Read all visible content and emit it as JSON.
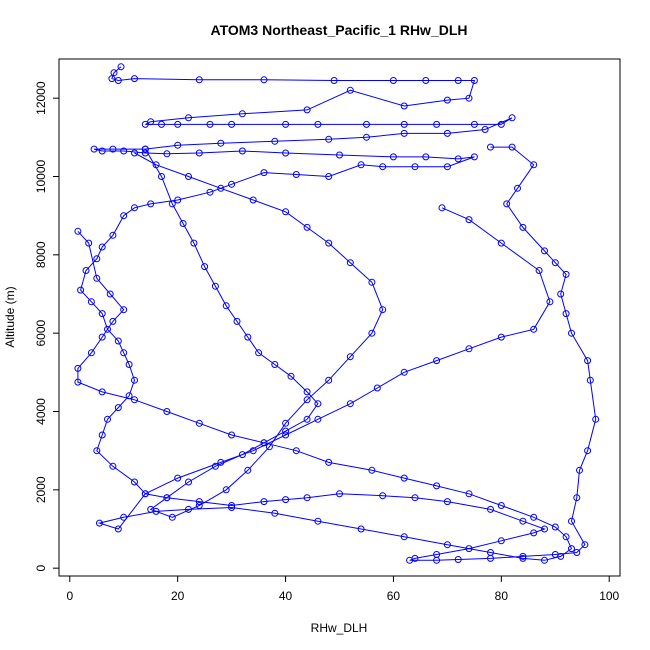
{
  "chart_data": {
    "type": "scatter",
    "title": "ATOM3 Northeast_Pacific_1 RHw_DLH",
    "xlabel": "RHw_DLH",
    "ylabel": "Altitude (m)",
    "xlim": [
      -2,
      102
    ],
    "ylim": [
      -200,
      13000
    ],
    "xticks": [
      0,
      20,
      40,
      60,
      80,
      100
    ],
    "yticks": [
      0,
      2000,
      4000,
      6000,
      8000,
      10000,
      12000
    ],
    "grid": false,
    "legend": "none",
    "series_color": "#0000ff",
    "marker": "open-circle",
    "series": [
      {
        "values": [
          [
            9.5,
            12800
          ],
          [
            8.2,
            12650
          ],
          [
            7.8,
            12500
          ],
          [
            9.0,
            12450
          ],
          [
            12.0,
            12500
          ],
          [
            24.0,
            12470
          ],
          [
            36.0,
            12470
          ],
          [
            49.0,
            12450
          ],
          [
            60.0,
            12450
          ],
          [
            66.0,
            12450
          ],
          [
            72.0,
            12450
          ],
          [
            75.0,
            12450
          ],
          [
            74.0,
            12000
          ],
          [
            70.0,
            11950
          ],
          [
            62.0,
            11800
          ],
          [
            52.0,
            12200
          ],
          [
            44.0,
            11700
          ],
          [
            32.0,
            11600
          ],
          [
            22.0,
            11500
          ],
          [
            15.0,
            11400
          ],
          [
            14.0,
            11330
          ],
          [
            17.0,
            11330
          ],
          [
            20.0,
            11330
          ],
          [
            26.0,
            11330
          ],
          [
            30.0,
            11330
          ],
          [
            40.0,
            11330
          ],
          [
            46.0,
            11330
          ],
          [
            55.0,
            11330
          ],
          [
            62.0,
            11330
          ],
          [
            68.0,
            11330
          ],
          [
            75.0,
            11330
          ],
          [
            80.0,
            11330
          ],
          [
            82.0,
            11500
          ],
          [
            77.0,
            11200
          ],
          [
            70.0,
            11100
          ],
          [
            62.0,
            11100
          ],
          [
            55.0,
            11000
          ],
          [
            48.0,
            10950
          ],
          [
            38.0,
            10900
          ],
          [
            28.0,
            10850
          ],
          [
            20.0,
            10800
          ],
          [
            14.0,
            10700
          ],
          [
            8.0,
            10700
          ],
          [
            4.5,
            10700
          ],
          [
            6.0,
            10650
          ],
          [
            10.0,
            10650
          ],
          [
            14.0,
            10600
          ],
          [
            18.0,
            10580
          ],
          [
            24.0,
            10600
          ],
          [
            32.0,
            10650
          ],
          [
            40.0,
            10600
          ],
          [
            50.0,
            10550
          ],
          [
            60.0,
            10500
          ],
          [
            66.0,
            10500
          ],
          [
            72.0,
            10450
          ],
          [
            75.0,
            10500
          ],
          [
            70.0,
            10250
          ],
          [
            64.0,
            10250
          ],
          [
            58.0,
            10250
          ],
          [
            54.0,
            10300
          ],
          [
            48.0,
            10000
          ],
          [
            42.0,
            10050
          ],
          [
            36.0,
            10100
          ],
          [
            30.0,
            9800
          ],
          [
            26.0,
            9600
          ],
          [
            20.0,
            9400
          ],
          [
            15.0,
            9300
          ],
          [
            12.0,
            9200
          ],
          [
            10.0,
            9000
          ],
          [
            8.0,
            8500
          ],
          [
            6.0,
            8200
          ],
          [
            5.0,
            7900
          ],
          [
            3.0,
            7600
          ],
          [
            2.0,
            7100
          ],
          [
            4.0,
            6800
          ],
          [
            6.0,
            6500
          ],
          [
            7.0,
            6100
          ],
          [
            9.0,
            5800
          ],
          [
            10.0,
            5500
          ],
          [
            11.0,
            5200
          ],
          [
            12.0,
            4800
          ],
          [
            11.0,
            4400
          ],
          [
            9.0,
            4100
          ],
          [
            7.0,
            3800
          ],
          [
            6.0,
            3400
          ],
          [
            5.0,
            3000
          ],
          [
            8.0,
            2600
          ],
          [
            12.0,
            2200
          ],
          [
            14.0,
            1900
          ],
          [
            18.0,
            1800
          ],
          [
            24.0,
            1700
          ],
          [
            30.0,
            1600
          ],
          [
            36.0,
            1700
          ],
          [
            40.0,
            1750
          ],
          [
            44.0,
            1800
          ],
          [
            50.0,
            1900
          ],
          [
            58.0,
            1850
          ],
          [
            64.0,
            1800
          ],
          [
            70.0,
            1700
          ],
          [
            78.0,
            1500
          ],
          [
            84.0,
            1200
          ],
          [
            88.0,
            1000
          ],
          [
            86.0,
            900
          ],
          [
            80.0,
            700
          ],
          [
            74.0,
            500
          ],
          [
            68.0,
            350
          ],
          [
            64.0,
            250
          ],
          [
            63.0,
            200
          ],
          [
            68.0,
            200
          ],
          [
            72.0,
            220
          ],
          [
            78.0,
            250
          ],
          [
            84.0,
            300
          ],
          [
            90.0,
            350
          ],
          [
            94.0,
            400
          ],
          [
            95.5,
            600
          ],
          [
            93.0,
            1200
          ],
          [
            94.0,
            1800
          ],
          [
            94.5,
            2500
          ],
          [
            96.0,
            3000
          ],
          [
            97.5,
            3800
          ],
          [
            96.5,
            4800
          ],
          [
            96.0,
            5300
          ],
          [
            93.0,
            6000
          ],
          [
            92.0,
            6500
          ],
          [
            91.0,
            7000
          ],
          [
            92.0,
            7500
          ],
          [
            90.0,
            7800
          ],
          [
            88.0,
            8100
          ],
          [
            84.0,
            8700
          ],
          [
            81.0,
            9300
          ],
          [
            83.0,
            9700
          ],
          [
            86.0,
            10300
          ],
          [
            82.0,
            10750
          ],
          [
            78.0,
            10750
          ]
        ]
      },
      {
        "values": [
          [
            1.5,
            8600
          ],
          [
            3.5,
            8300
          ],
          [
            5.0,
            7400
          ],
          [
            7.5,
            7000
          ],
          [
            10.0,
            6600
          ],
          [
            8.0,
            6300
          ],
          [
            6.0,
            5900
          ],
          [
            4.0,
            5500
          ],
          [
            1.5,
            5100
          ],
          [
            1.5,
            4750
          ],
          [
            6.0,
            4500
          ],
          [
            12.0,
            4300
          ],
          [
            18.0,
            4000
          ],
          [
            24.0,
            3700
          ],
          [
            30.0,
            3400
          ],
          [
            36.0,
            3200
          ],
          [
            42.0,
            3000
          ],
          [
            48.0,
            2700
          ],
          [
            56.0,
            2500
          ],
          [
            62.0,
            2300
          ],
          [
            68.0,
            2100
          ],
          [
            74.0,
            1900
          ],
          [
            80.0,
            1600
          ],
          [
            86.0,
            1300
          ],
          [
            90.0,
            1050
          ],
          [
            92.0,
            800
          ],
          [
            93.0,
            500
          ],
          [
            91.0,
            300
          ],
          [
            88.0,
            200
          ],
          [
            84.0,
            250
          ],
          [
            78.0,
            400
          ],
          [
            70.0,
            600
          ],
          [
            62.0,
            800
          ],
          [
            54.0,
            1000
          ],
          [
            46.0,
            1200
          ],
          [
            38.0,
            1400
          ],
          [
            30.0,
            1550
          ],
          [
            22.0,
            1500
          ],
          [
            16.0,
            1450
          ],
          [
            10.0,
            1300
          ],
          [
            5.5,
            1150
          ],
          [
            9.0,
            1000
          ],
          [
            14.0,
            1900
          ],
          [
            20.0,
            2300
          ],
          [
            28.0,
            2700
          ],
          [
            34.0,
            3000
          ],
          [
            40.0,
            3400
          ],
          [
            46.0,
            3800
          ],
          [
            52.0,
            4200
          ],
          [
            57.0,
            4600
          ],
          [
            62.0,
            5000
          ],
          [
            68.0,
            5300
          ],
          [
            74.0,
            5600
          ],
          [
            80.0,
            5900
          ],
          [
            86.0,
            6100
          ],
          [
            89.0,
            6800
          ],
          [
            87.0,
            7600
          ],
          [
            80.0,
            8300
          ],
          [
            74.0,
            8900
          ],
          [
            69.0,
            9200
          ]
        ]
      },
      {
        "values": [
          [
            14.0,
            10700
          ],
          [
            17.0,
            10000
          ],
          [
            19.0,
            9300
          ],
          [
            21.0,
            8800
          ],
          [
            23.0,
            8300
          ],
          [
            25.0,
            7700
          ],
          [
            27.0,
            7200
          ],
          [
            29.0,
            6700
          ],
          [
            31.0,
            6300
          ],
          [
            33.0,
            5900
          ],
          [
            35.0,
            5500
          ],
          [
            38.0,
            5200
          ],
          [
            41.0,
            4900
          ],
          [
            44.0,
            4500
          ],
          [
            46.0,
            4200
          ],
          [
            44.0,
            3800
          ],
          [
            40.0,
            3500
          ],
          [
            36.0,
            3200
          ],
          [
            32.0,
            2900
          ],
          [
            27.0,
            2600
          ],
          [
            22.0,
            2200
          ],
          [
            18.0,
            1800
          ],
          [
            15.0,
            1500
          ],
          [
            19.0,
            1300
          ],
          [
            24.0,
            1600
          ],
          [
            29.0,
            2000
          ],
          [
            33.0,
            2500
          ],
          [
            37.0,
            3100
          ],
          [
            40.0,
            3700
          ],
          [
            44.0,
            4300
          ],
          [
            48.0,
            4800
          ],
          [
            52.0,
            5400
          ],
          [
            56.0,
            6000
          ],
          [
            58.0,
            6600
          ],
          [
            56.0,
            7300
          ],
          [
            52.0,
            7800
          ],
          [
            48.0,
            8300
          ],
          [
            44.0,
            8700
          ],
          [
            40.0,
            9100
          ],
          [
            34.0,
            9400
          ],
          [
            28.0,
            9700
          ],
          [
            22.0,
            10000
          ],
          [
            16.0,
            10300
          ],
          [
            12.0,
            10600
          ]
        ]
      }
    ]
  }
}
